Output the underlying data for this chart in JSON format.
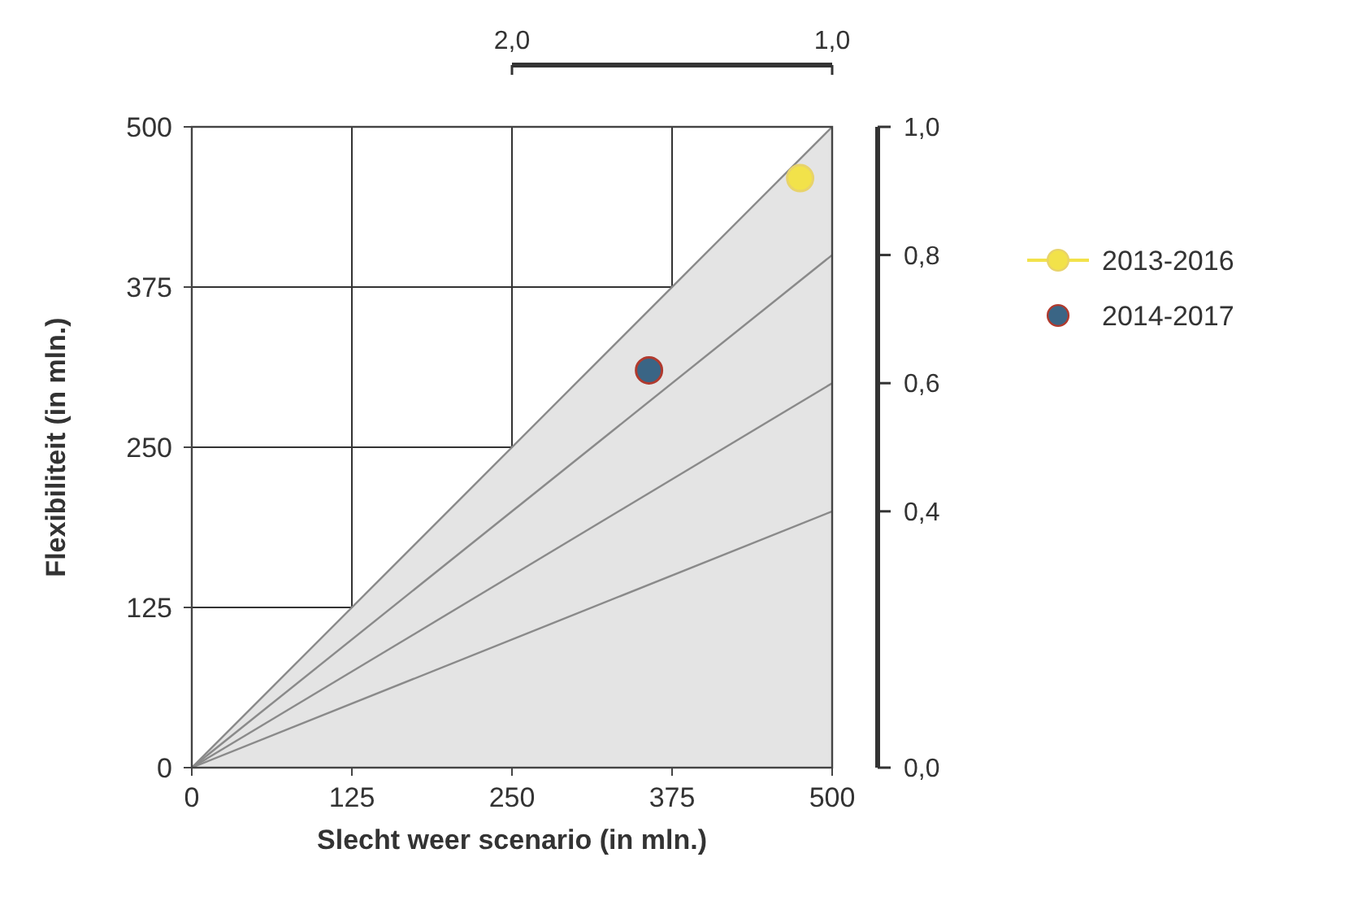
{
  "chart_data": {
    "type": "scatter",
    "xlabel": "Slecht weer scenario (in mln.)",
    "ylabel": "Flexibiliteit (in mln.)",
    "xlim": [
      0,
      500
    ],
    "ylim": [
      0,
      500
    ],
    "xticks": [
      0,
      125,
      250,
      375,
      500
    ],
    "yticks": [
      0,
      125,
      250,
      375,
      500
    ],
    "y2lim": [
      0,
      1
    ],
    "y2ticks": [
      {
        "value": 0,
        "label": "0,0"
      },
      {
        "value": 0.4,
        "label": "0,4"
      },
      {
        "value": 0.6,
        "label": "0,6"
      },
      {
        "value": 0.8,
        "label": "0,8"
      },
      {
        "value": 1,
        "label": "1,0"
      }
    ],
    "x2lim": [
      2,
      1
    ],
    "x2ticks": [
      {
        "value": 2,
        "label": "2,0"
      },
      {
        "value": 1,
        "label": "1,0"
      }
    ],
    "grid": true,
    "legend": "right",
    "series": [
      {
        "type": "area",
        "color": "#e4e4e4",
        "x": [
          0,
          500
        ],
        "values": [
          0,
          500
        ]
      },
      {
        "type": "line",
        "color": "#8a8a8a",
        "x": [
          0,
          500
        ],
        "values": [
          0,
          400
        ]
      },
      {
        "type": "line",
        "color": "#8a8a8a",
        "x": [
          0,
          500
        ],
        "values": [
          0,
          300
        ]
      },
      {
        "type": "line",
        "color": "#8a8a8a",
        "x": [
          0,
          500
        ],
        "values": [
          0,
          200
        ]
      },
      {
        "name": "2013-2016",
        "color": "#f2e24a",
        "marker": "circle",
        "x": [
          475
        ],
        "values": [
          460
        ]
      },
      {
        "name": "2014-2017",
        "color": "#3a6585",
        "marker": "circle",
        "x": [
          357
        ],
        "values": [
          310
        ]
      }
    ]
  }
}
